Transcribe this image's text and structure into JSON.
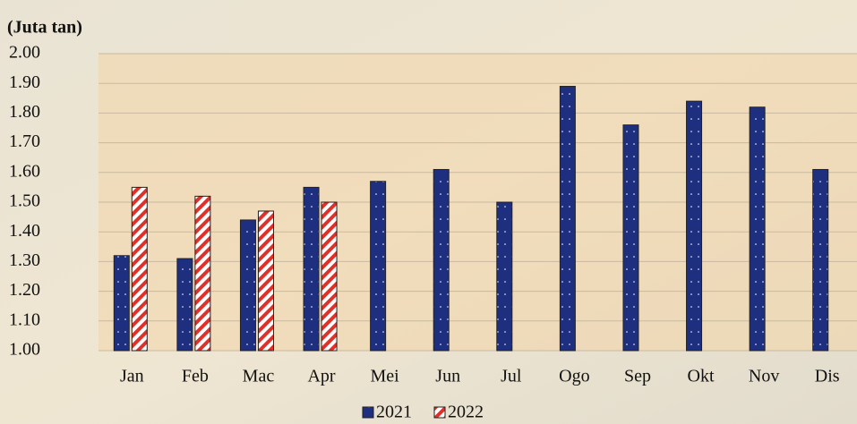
{
  "chart_data": {
    "type": "bar",
    "ylabel": "(Juta tan)",
    "categories": [
      "Jan",
      "Feb",
      "Mac",
      "Apr",
      "Mei",
      "Jun",
      "Jul",
      "Ogo",
      "Sep",
      "Okt",
      "Nov",
      "Dis"
    ],
    "series": [
      {
        "name": "2021",
        "color": "#1f2f80",
        "values": [
          1.32,
          1.31,
          1.44,
          1.55,
          1.57,
          1.61,
          1.5,
          1.89,
          1.76,
          1.84,
          1.82,
          1.61
        ]
      },
      {
        "name": "2022",
        "color": "#e0302a",
        "values": [
          1.55,
          1.52,
          1.47,
          1.5,
          null,
          null,
          null,
          null,
          null,
          null,
          null,
          null
        ]
      }
    ],
    "ylim": [
      1,
      2
    ],
    "yticks": [
      {
        "value": 1,
        "label": "1.00"
      },
      {
        "value": 1.1,
        "label": "1.10"
      },
      {
        "value": 1.2,
        "label": "1.20"
      },
      {
        "value": 1.3,
        "label": "1.30"
      },
      {
        "value": 1.4,
        "label": "1.40"
      },
      {
        "value": 1.5,
        "label": "1.50"
      },
      {
        "value": 1.6,
        "label": "1.60"
      },
      {
        "value": 1.7,
        "label": "1.70"
      },
      {
        "value": 1.8,
        "label": "1.80"
      },
      {
        "value": 1.9,
        "label": "1.90"
      },
      {
        "value": 2,
        "label": "2.00"
      }
    ],
    "grid": true,
    "legend": "bottom"
  }
}
